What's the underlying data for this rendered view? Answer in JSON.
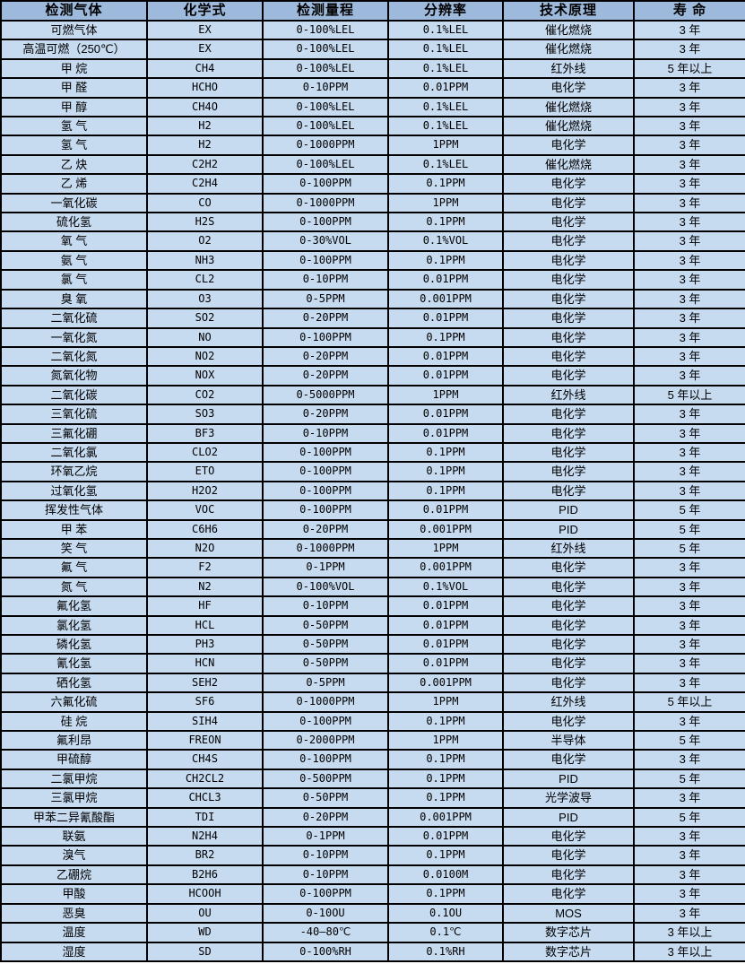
{
  "colors": {
    "header_bg": "#9db9db",
    "row_bg": "#c6daf0",
    "border": "#000000",
    "text": "#000000",
    "page_bg": "#ffffff"
  },
  "table": {
    "columns": [
      "检测气体",
      "化学式",
      "检测量程",
      "分辨率",
      "技术原理",
      "寿 命"
    ],
    "rows": [
      [
        "可燃气体",
        "EX",
        "0-100%LEL",
        "0.1%LEL",
        "催化燃烧",
        "3 年"
      ],
      [
        "高温可燃（250℃）",
        "EX",
        "0-100%LEL",
        "0.1%LEL",
        "催化燃烧",
        "3 年"
      ],
      [
        "甲 烷",
        "CH4",
        "0-100%LEL",
        "0.1%LEL",
        "红外线",
        "5 年以上"
      ],
      [
        "甲 醛",
        "HCHO",
        "0-10PPM",
        "0.01PPM",
        "电化学",
        "3 年"
      ],
      [
        "甲 醇",
        "CH4O",
        "0-100%LEL",
        "0.1%LEL",
        "催化燃烧",
        "3 年"
      ],
      [
        "氢 气",
        "H2",
        "0-100%LEL",
        "0.1%LEL",
        "催化燃烧",
        "3 年"
      ],
      [
        "氢 气",
        "H2",
        "0-1000PPM",
        "1PPM",
        "电化学",
        "3 年"
      ],
      [
        "乙 炔",
        "C2H2",
        "0-100%LEL",
        "0.1%LEL",
        "催化燃烧",
        "3 年"
      ],
      [
        "乙 烯",
        "C2H4",
        "0-100PPM",
        "0.1PPM",
        "电化学",
        "3 年"
      ],
      [
        "一氧化碳",
        "CO",
        "0-1000PPM",
        "1PPM",
        "电化学",
        "3 年"
      ],
      [
        "硫化氢",
        "H2S",
        "0-100PPM",
        "0.1PPM",
        "电化学",
        "3 年"
      ],
      [
        "氧 气",
        "O2",
        "0-30%VOL",
        "0.1%VOL",
        "电化学",
        "3 年"
      ],
      [
        "氨 气",
        "NH3",
        "0-100PPM",
        "0.1PPM",
        "电化学",
        "3 年"
      ],
      [
        "氯 气",
        "CL2",
        "0-10PPM",
        "0.01PPM",
        "电化学",
        "3 年"
      ],
      [
        "臭 氧",
        "O3",
        "0-5PPM",
        "0.001PPM",
        "电化学",
        "3 年"
      ],
      [
        "二氧化硫",
        "SO2",
        "0-20PPM",
        "0.01PPM",
        "电化学",
        "3 年"
      ],
      [
        "一氧化氮",
        "NO",
        "0-100PPM",
        "0.1PPM",
        "电化学",
        "3 年"
      ],
      [
        "二氧化氮",
        "NO2",
        "0-20PPM",
        "0.01PPM",
        "电化学",
        "3 年"
      ],
      [
        "氮氧化物",
        "NOX",
        "0-20PPM",
        "0.01PPM",
        "电化学",
        "3 年"
      ],
      [
        "二氧化碳",
        "CO2",
        "0-5000PPM",
        "1PPM",
        "红外线",
        "5 年以上"
      ],
      [
        "三氧化硫",
        "SO3",
        "0-20PPM",
        "0.01PPM",
        "电化学",
        "3 年"
      ],
      [
        "三氟化硼",
        "BF3",
        "0-10PPM",
        "0.01PPM",
        "电化学",
        "3 年"
      ],
      [
        "二氧化氯",
        "CLO2",
        "0-100PPM",
        "0.1PPM",
        "电化学",
        "3 年"
      ],
      [
        "环氧乙烷",
        "ETO",
        "0-100PPM",
        "0.1PPM",
        "电化学",
        "3 年"
      ],
      [
        "过氧化氢",
        "H2O2",
        "0-100PPM",
        "0.1PPM",
        "电化学",
        "3 年"
      ],
      [
        "挥发性气体",
        "VOC",
        "0-100PPM",
        "0.01PPM",
        "PID",
        "5 年"
      ],
      [
        "甲 苯",
        "C6H6",
        "0-20PPM",
        "0.001PPM",
        "PID",
        "5 年"
      ],
      [
        "笑 气",
        "N2O",
        "0-1000PPM",
        "1PPM",
        "红外线",
        "5 年"
      ],
      [
        "氟 气",
        "F2",
        "0-1PPM",
        "0.001PPM",
        "电化学",
        "3 年"
      ],
      [
        "氮 气",
        "N2",
        "0-100%VOL",
        "0.1%VOL",
        "电化学",
        "3 年"
      ],
      [
        "氟化氢",
        "HF",
        "0-10PPM",
        "0.01PPM",
        "电化学",
        "3 年"
      ],
      [
        "氯化氢",
        "HCL",
        "0-50PPM",
        "0.01PPM",
        "电化学",
        "3 年"
      ],
      [
        "磷化氢",
        "PH3",
        "0-50PPM",
        "0.01PPM",
        "电化学",
        "3 年"
      ],
      [
        "氰化氢",
        "HCN",
        "0-50PPM",
        "0.01PPM",
        "电化学",
        "3 年"
      ],
      [
        "硒化氢",
        "SEH2",
        "0-5PPM",
        "0.001PPM",
        "电化学",
        "3 年"
      ],
      [
        "六氟化硫",
        "SF6",
        "0-1000PPM",
        "1PPM",
        "红外线",
        "5 年以上"
      ],
      [
        "硅 烷",
        "SIH4",
        "0-100PPM",
        "0.1PPM",
        "电化学",
        "3 年"
      ],
      [
        "氟利昂",
        "FREON",
        "0-2000PPM",
        "1PPM",
        "半导体",
        "5 年"
      ],
      [
        "甲硫醇",
        "CH4S",
        "0-100PPM",
        "0.1PPM",
        "电化学",
        "3 年"
      ],
      [
        "二氯甲烷",
        "CH2CL2",
        "0-500PPM",
        "0.1PPM",
        "PID",
        "5 年"
      ],
      [
        "三氯甲烷",
        "CHCL3",
        "0-50PPM",
        "0.1PPM",
        "光学波导",
        "3 年"
      ],
      [
        "甲苯二异氰酸酯",
        "TDI",
        "0-20PPM",
        "0.001PPM",
        "PID",
        "5 年"
      ],
      [
        "联氨",
        "N2H4",
        "0-1PPM",
        "0.01PPM",
        "电化学",
        "3 年"
      ],
      [
        "溴气",
        "BR2",
        "0-10PPM",
        "0.1PPM",
        "电化学",
        "3 年"
      ],
      [
        "乙硼烷",
        "B2H6",
        "0-10PPM",
        "0.0100M",
        "电化学",
        "3 年"
      ],
      [
        "甲酸",
        "HCOOH",
        "0-100PPM",
        "0.1PPM",
        "电化学",
        "3 年"
      ],
      [
        "恶臭",
        "OU",
        "0-10OU",
        "0.1OU",
        "MOS",
        "3 年"
      ],
      [
        "温度",
        "WD",
        "-40—80℃",
        "0.1℃",
        "数字芯片",
        "3 年以上"
      ],
      [
        "湿度",
        "SD",
        "0-100%RH",
        "0.1%RH",
        "数字芯片",
        "3 年以上"
      ]
    ]
  }
}
